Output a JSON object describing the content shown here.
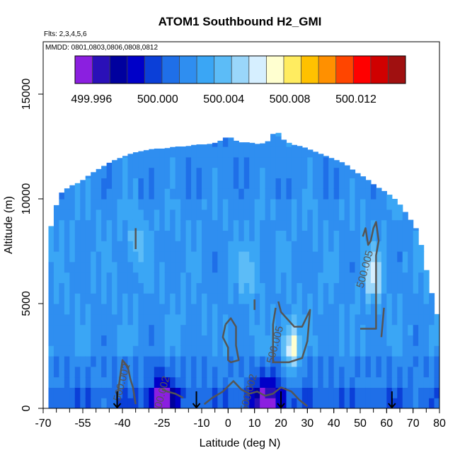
{
  "chart_data": {
    "type": "heatmap",
    "title": "ATOM1 Southbound H2_GMI",
    "flights_note": "Flts: 2,3,4,5,6",
    "dates_note": "MMDD: 0801,0803,0806,0808,0812",
    "xlabel": "Latitude (deg N)",
    "ylabel": "Altitude (m)",
    "xlim": [
      -70,
      80
    ],
    "ylim": [
      0,
      17500
    ],
    "x_ticks": [
      -70,
      -55,
      -40,
      -25,
      -10,
      0,
      10,
      20,
      30,
      40,
      50,
      60,
      70,
      80
    ],
    "x_tick_labels": [
      "-70",
      "-55",
      "-40",
      "-25",
      "-10",
      "0",
      "10",
      "20",
      "30",
      "40",
      "50",
      "60",
      "70",
      "80"
    ],
    "y_ticks": [
      0,
      5000,
      10000,
      15000
    ],
    "y_tick_labels": [
      "0",
      "5000",
      "10000",
      "15000"
    ],
    "colorbar": {
      "range": [
        499.995,
        500.015
      ],
      "tick_values": [
        499.996,
        500.0,
        500.004,
        500.008,
        500.012
      ],
      "tick_labels": [
        "499.996",
        "500.000",
        "500.004",
        "500.008",
        "500.012"
      ],
      "colors": [
        "#8b1fe0",
        "#2a10b8",
        "#00009e",
        "#0000c8",
        "#0b3fd8",
        "#1f6fe8",
        "#2f8ef0",
        "#3aa6f5",
        "#5cbcf7",
        "#9ad6fa",
        "#d6efff",
        "#ffffd0",
        "#ffec60",
        "#ffc100",
        "#ff9000",
        "#ff4500",
        "#ff0000",
        "#d00000",
        "#a01010"
      ]
    },
    "field_description": "Gridded H2 values; background approx 500.002, enhanced 500.005-500.007 near 25N 3000m and 55N 6000m, depleted approx 499.997 near surface 20S-30N",
    "column_tops_km": [
      [
        -68,
        8.2
      ],
      [
        -64,
        10.2
      ],
      [
        -60,
        10.6
      ],
      [
        -56,
        10.8
      ],
      [
        -52,
        11.2
      ],
      [
        -48,
        11.5
      ],
      [
        -44,
        11.8
      ],
      [
        -40,
        12.0
      ],
      [
        -36,
        12.2
      ],
      [
        -32,
        12.3
      ],
      [
        -28,
        12.4
      ],
      [
        -24,
        12.4
      ],
      [
        -20,
        12.5
      ],
      [
        -16,
        12.5
      ],
      [
        -12,
        12.6
      ],
      [
        -8,
        12.6
      ],
      [
        -4,
        12.7
      ],
      [
        0,
        13.0
      ],
      [
        4,
        12.7
      ],
      [
        8,
        12.7
      ],
      [
        12,
        12.6
      ],
      [
        16,
        12.8
      ],
      [
        18,
        13.4
      ],
      [
        20,
        12.9
      ],
      [
        24,
        12.6
      ],
      [
        28,
        12.5
      ],
      [
        32,
        12.3
      ],
      [
        36,
        12.1
      ],
      [
        40,
        11.9
      ],
      [
        44,
        11.7
      ],
      [
        48,
        11.3
      ],
      [
        52,
        11.0
      ],
      [
        56,
        10.6
      ],
      [
        60,
        10.3
      ],
      [
        64,
        9.9
      ],
      [
        68,
        9.2
      ],
      [
        72,
        8.4
      ],
      [
        76,
        6.0
      ],
      [
        80,
        4.0
      ]
    ],
    "anomalies": [
      {
        "lat": 24,
        "alt_km": 2.9,
        "value": 500.007,
        "radius_deg": 3
      },
      {
        "lat": 55,
        "alt_km": 6.4,
        "value": 500.006,
        "radius_deg": 3
      },
      {
        "lat": -25,
        "alt_km": 0.3,
        "value": 499.996,
        "radius_deg": 5
      },
      {
        "lat": 15,
        "alt_km": 0.3,
        "value": 499.997,
        "radius_deg": 6
      },
      {
        "lat": -35,
        "alt_km": 8.0,
        "value": 500.004,
        "radius_deg": 3
      },
      {
        "lat": 8,
        "alt_km": 6.5,
        "value": 500.004,
        "radius_deg": 4
      }
    ],
    "contours": [
      {
        "level": "500.005",
        "label_pos": [
          53,
          6.6
        ],
        "points": [
          [
            51,
            8.2
          ],
          [
            52,
            8.6
          ],
          [
            53,
            7.8
          ],
          [
            54,
            8.0
          ],
          [
            55,
            8.6
          ],
          [
            56,
            8.9
          ],
          [
            57,
            8.0
          ],
          [
            56,
            7.3
          ],
          [
            56,
            6.2
          ],
          [
            56,
            5.0
          ],
          [
            56,
            3.8
          ],
          [
            53,
            3.8
          ],
          [
            50,
            3.8
          ]
        ]
      },
      {
        "level": "500.005",
        "label_pos": [
          19,
          3.0
        ],
        "points": [
          [
            19,
            5.1
          ],
          [
            20,
            4.6
          ],
          [
            25,
            3.9
          ],
          [
            28,
            3.9
          ],
          [
            31,
            4.7
          ],
          [
            30,
            3.2
          ],
          [
            28,
            2.4
          ],
          [
            23,
            2.2
          ],
          [
            17,
            2.2
          ],
          [
            17,
            4.0
          ],
          [
            18,
            4.8
          ]
        ]
      },
      {
        "level": "",
        "label_pos": null,
        "points": [
          [
            -1,
            4.0
          ],
          [
            -2,
            3.4
          ],
          [
            0,
            2.9
          ],
          [
            0,
            2.3
          ],
          [
            1,
            2.2
          ],
          [
            4,
            2.3
          ],
          [
            3,
            3.0
          ],
          [
            3,
            3.9
          ],
          [
            1,
            4.3
          ],
          [
            -1,
            4.0
          ]
        ]
      },
      {
        "level": "500.002",
        "label_pos": [
          -39,
          1.2
        ],
        "points": [
          [
            -42,
            0.5
          ],
          [
            -41,
            1.4
          ],
          [
            -40,
            2.3
          ],
          [
            -38,
            2.0
          ],
          [
            -37,
            1.4
          ],
          [
            -36,
            1.0
          ],
          [
            -35,
            0.2
          ]
        ]
      },
      {
        "level": "500.002",
        "label_pos": [
          -24,
          0.6
        ],
        "points": [
          [
            -25,
            0.9
          ],
          [
            -23,
            0.8
          ],
          [
            -20,
            0.7
          ],
          [
            -17,
            0.5
          ]
        ]
      },
      {
        "level": "500.002",
        "label_pos": [
          9,
          0.7
        ],
        "points": [
          [
            -9,
            0.2
          ],
          [
            -6,
            0.5
          ],
          [
            -2,
            0.8
          ],
          [
            2,
            1.3
          ],
          [
            5,
            0.9
          ],
          [
            8,
            0.7
          ],
          [
            11,
            0.8
          ],
          [
            14,
            0.6
          ],
          [
            17,
            0.7
          ],
          [
            20,
            1.0
          ],
          [
            24,
            0.8
          ],
          [
            27,
            0.4
          ],
          [
            30,
            0.1
          ]
        ]
      },
      {
        "level": "",
        "label_pos": null,
        "points": [
          [
            -35,
            8.6
          ],
          [
            -35,
            7.6
          ]
        ]
      },
      {
        "level": "",
        "label_pos": null,
        "points": [
          [
            59,
            4.8
          ],
          [
            58,
            3.4
          ]
        ]
      },
      {
        "level": "",
        "label_pos": null,
        "points": [
          [
            10,
            5.2
          ],
          [
            10,
            4.7
          ]
        ]
      }
    ],
    "arrows_lat": [
      -42,
      -12,
      20,
      62
    ]
  }
}
